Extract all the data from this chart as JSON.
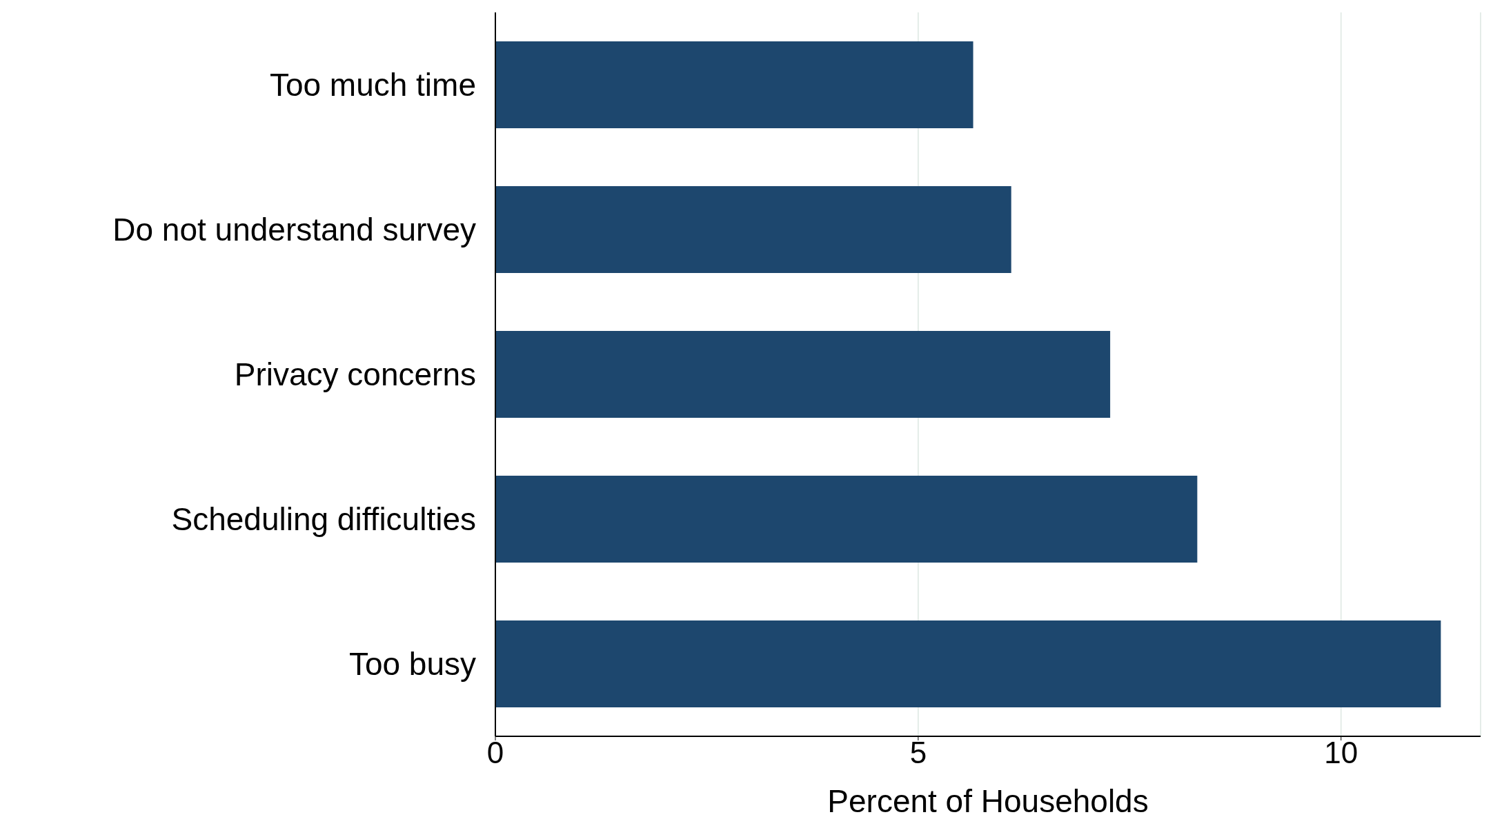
{
  "chart_data": {
    "type": "bar",
    "orientation": "horizontal",
    "xlabel": "Percent of Households",
    "categories": [
      "Too much time",
      "Do not understand survey",
      "Privacy concerns",
      "Scheduling difficulties",
      "Too busy"
    ],
    "values": [
      5.65,
      6.1,
      7.27,
      8.3,
      11.18
    ],
    "color": "#1d476e",
    "xlim": [
      0,
      11.65
    ],
    "xticks": [
      0,
      5,
      10
    ],
    "grid": "x"
  }
}
